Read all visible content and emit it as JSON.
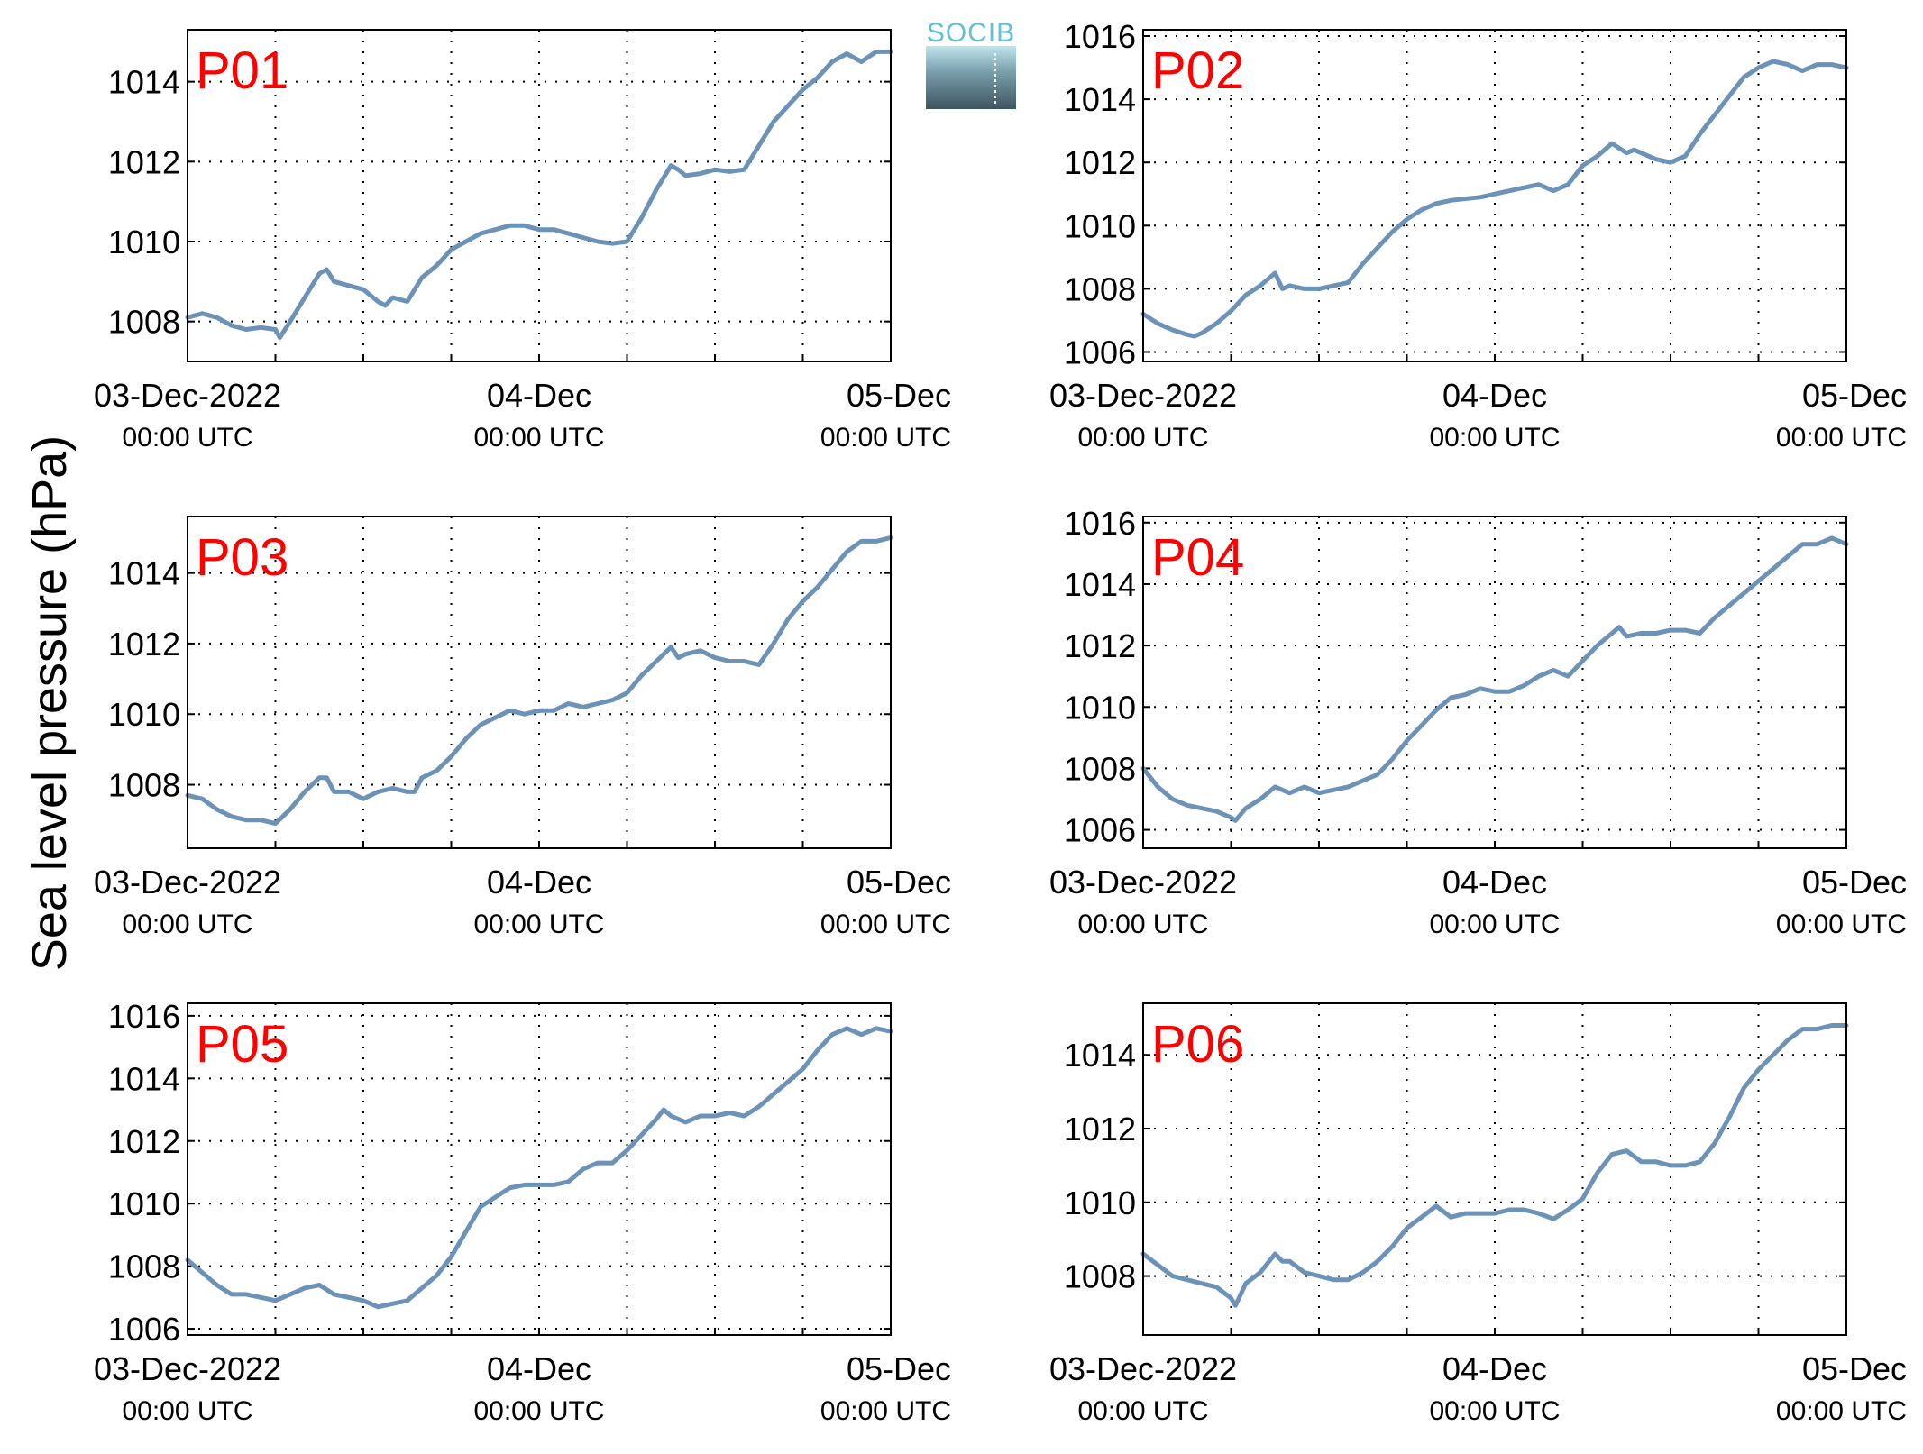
{
  "figure": {
    "ylabel": "Sea level pressure (hPa)",
    "logo_text": "SOCIB",
    "colors": {
      "line": "#6c93b7",
      "panel_label": "#ff0000",
      "grid": "#000000",
      "axes": "#000000"
    }
  },
  "chart_data": [
    {
      "type": "line",
      "title": "P01",
      "x_start": "03-Dec-2022 00:00 UTC",
      "x_end": "05-Dec-2022 00:00 UTC",
      "xlim_hours": [
        0,
        48
      ],
      "ylim": [
        1007.0,
        1015.3
      ],
      "yticks": [
        1008,
        1010,
        1012,
        1014
      ],
      "xticks": [
        {
          "hours": 0,
          "label": "03-Dec-2022",
          "sub": "00:00 UTC"
        },
        {
          "hours": 24,
          "label": "04-Dec",
          "sub": "00:00 UTC"
        },
        {
          "hours": 48,
          "label": "05-Dec",
          "sub": "00:00 UTC"
        }
      ],
      "grid": true,
      "series": [
        {
          "x": [
            0,
            1,
            2,
            3,
            4,
            5,
            6,
            6.3,
            7,
            8,
            9,
            9.5,
            10,
            11,
            12,
            13,
            13.5,
            14,
            15,
            16,
            17,
            18,
            19,
            20,
            21,
            22,
            23,
            24,
            25,
            26,
            27,
            28,
            29,
            30,
            31,
            32,
            33,
            33.5,
            34,
            35,
            36,
            37,
            38,
            39,
            40,
            41,
            42,
            43,
            44,
            45,
            46,
            47,
            48
          ],
          "y": [
            1008.1,
            1008.2,
            1008.1,
            1007.9,
            1007.8,
            1007.85,
            1007.8,
            1007.6,
            1008.0,
            1008.6,
            1009.2,
            1009.3,
            1009.0,
            1008.9,
            1008.8,
            1008.5,
            1008.4,
            1008.6,
            1008.5,
            1009.1,
            1009.4,
            1009.8,
            1010.0,
            1010.2,
            1010.3,
            1010.4,
            1010.4,
            1010.3,
            1010.3,
            1010.2,
            1010.1,
            1010.0,
            1009.95,
            1010.0,
            1010.6,
            1011.3,
            1011.9,
            1011.8,
            1011.65,
            1011.7,
            1011.8,
            1011.75,
            1011.8,
            1012.4,
            1013.0,
            1013.4,
            1013.8,
            1014.1,
            1014.5,
            1014.7,
            1014.5,
            1014.75,
            1014.75
          ]
        }
      ]
    },
    {
      "type": "line",
      "title": "P02",
      "x_start": "03-Dec-2022 00:00 UTC",
      "x_end": "05-Dec-2022 00:00 UTC",
      "xlim_hours": [
        0,
        48
      ],
      "ylim": [
        1005.7,
        1016.2
      ],
      "yticks": [
        1006,
        1008,
        1010,
        1012,
        1014,
        1016
      ],
      "xticks": [
        {
          "hours": 0,
          "label": "03-Dec-2022",
          "sub": "00:00 UTC"
        },
        {
          "hours": 24,
          "label": "04-Dec",
          "sub": "00:00 UTC"
        },
        {
          "hours": 48,
          "label": "05-Dec",
          "sub": "00:00 UTC"
        }
      ],
      "grid": true,
      "series": [
        {
          "x": [
            0,
            1,
            2,
            3,
            3.5,
            4,
            5,
            6,
            7,
            8,
            9,
            9.5,
            10,
            11,
            12,
            13,
            14,
            15,
            16,
            17,
            18,
            19,
            20,
            21,
            22,
            23,
            24,
            25,
            26,
            27,
            28,
            29,
            30,
            31,
            32,
            33,
            33.5,
            34,
            35,
            36,
            37,
            38,
            39,
            40,
            41,
            42,
            43,
            44,
            45,
            46,
            47,
            48
          ],
          "y": [
            1007.2,
            1006.9,
            1006.7,
            1006.55,
            1006.5,
            1006.6,
            1006.9,
            1007.3,
            1007.8,
            1008.1,
            1008.5,
            1008.0,
            1008.1,
            1008.0,
            1008.0,
            1008.1,
            1008.2,
            1008.8,
            1009.3,
            1009.8,
            1010.2,
            1010.5,
            1010.7,
            1010.8,
            1010.85,
            1010.9,
            1011.0,
            1011.1,
            1011.2,
            1011.3,
            1011.1,
            1011.3,
            1011.9,
            1012.2,
            1012.6,
            1012.3,
            1012.4,
            1012.3,
            1012.1,
            1012.0,
            1012.2,
            1012.9,
            1013.5,
            1014.1,
            1014.7,
            1015.0,
            1015.2,
            1015.1,
            1014.9,
            1015.1,
            1015.1,
            1015.0
          ]
        }
      ]
    },
    {
      "type": "line",
      "title": "P03",
      "x_start": "03-Dec-2022 00:00 UTC",
      "x_end": "05-Dec-2022 00:00 UTC",
      "xlim_hours": [
        0,
        48
      ],
      "ylim": [
        1006.2,
        1015.6
      ],
      "yticks": [
        1008,
        1010,
        1012,
        1014
      ],
      "xticks": [
        {
          "hours": 0,
          "label": "03-Dec-2022",
          "sub": "00:00 UTC"
        },
        {
          "hours": 24,
          "label": "04-Dec",
          "sub": "00:00 UTC"
        },
        {
          "hours": 48,
          "label": "05-Dec",
          "sub": "00:00 UTC"
        }
      ],
      "grid": true,
      "series": [
        {
          "x": [
            0,
            1,
            2,
            3,
            4,
            5,
            6,
            7,
            8,
            9,
            9.5,
            10,
            11,
            12,
            13,
            14,
            15,
            15.5,
            16,
            17,
            18,
            19,
            20,
            21,
            22,
            23,
            24,
            25,
            26,
            27,
            28,
            29,
            30,
            31,
            32,
            33,
            33.5,
            34,
            35,
            36,
            37,
            38,
            39,
            40,
            41,
            42,
            43,
            44,
            45,
            46,
            47,
            48
          ],
          "y": [
            1007.7,
            1007.6,
            1007.3,
            1007.1,
            1007.0,
            1007.0,
            1006.9,
            1007.3,
            1007.8,
            1008.2,
            1008.2,
            1007.8,
            1007.8,
            1007.6,
            1007.8,
            1007.9,
            1007.8,
            1007.8,
            1008.2,
            1008.4,
            1008.8,
            1009.3,
            1009.7,
            1009.9,
            1010.1,
            1010.0,
            1010.1,
            1010.1,
            1010.3,
            1010.2,
            1010.3,
            1010.4,
            1010.6,
            1011.1,
            1011.5,
            1011.9,
            1011.6,
            1011.7,
            1011.8,
            1011.6,
            1011.5,
            1011.5,
            1011.4,
            1012.0,
            1012.7,
            1013.2,
            1013.6,
            1014.1,
            1014.6,
            1014.9,
            1014.9,
            1015.0
          ]
        }
      ]
    },
    {
      "type": "line",
      "title": "P04",
      "x_start": "03-Dec-2022 00:00 UTC",
      "x_end": "05-Dec-2022 00:00 UTC",
      "xlim_hours": [
        0,
        48
      ],
      "ylim": [
        1005.4,
        1016.2
      ],
      "yticks": [
        1006,
        1008,
        1010,
        1012,
        1014,
        1016
      ],
      "xticks": [
        {
          "hours": 0,
          "label": "03-Dec-2022",
          "sub": "00:00 UTC"
        },
        {
          "hours": 24,
          "label": "04-Dec",
          "sub": "00:00 UTC"
        },
        {
          "hours": 48,
          "label": "05-Dec",
          "sub": "00:00 UTC"
        }
      ],
      "grid": true,
      "series": [
        {
          "x": [
            0,
            1,
            2,
            3,
            4,
            5,
            6,
            6.3,
            7,
            8,
            9,
            10,
            11,
            12,
            13,
            14,
            15,
            16,
            17,
            18,
            19,
            20,
            21,
            22,
            23,
            24,
            25,
            26,
            27,
            28,
            29,
            30,
            31,
            32,
            32.5,
            33,
            34,
            35,
            36,
            37,
            38,
            39,
            40,
            41,
            42,
            43,
            44,
            45,
            46,
            47,
            48
          ],
          "y": [
            1008.0,
            1007.4,
            1007.0,
            1006.8,
            1006.7,
            1006.6,
            1006.4,
            1006.3,
            1006.7,
            1007.0,
            1007.4,
            1007.2,
            1007.4,
            1007.2,
            1007.3,
            1007.4,
            1007.6,
            1007.8,
            1008.3,
            1008.9,
            1009.4,
            1009.9,
            1010.3,
            1010.4,
            1010.6,
            1010.5,
            1010.5,
            1010.7,
            1011.0,
            1011.2,
            1011.0,
            1011.5,
            1012.0,
            1012.4,
            1012.6,
            1012.3,
            1012.4,
            1012.4,
            1012.5,
            1012.5,
            1012.4,
            1012.9,
            1013.3,
            1013.7,
            1014.1,
            1014.5,
            1014.9,
            1015.3,
            1015.3,
            1015.5,
            1015.3
          ]
        }
      ]
    },
    {
      "type": "line",
      "title": "P05",
      "x_start": "03-Dec-2022 00:00 UTC",
      "x_end": "05-Dec-2022 00:00 UTC",
      "xlim_hours": [
        0,
        48
      ],
      "ylim": [
        1005.8,
        1016.4
      ],
      "yticks": [
        1006,
        1008,
        1010,
        1012,
        1014,
        1016
      ],
      "xticks": [
        {
          "hours": 0,
          "label": "03-Dec-2022",
          "sub": "00:00 UTC"
        },
        {
          "hours": 24,
          "label": "04-Dec",
          "sub": "00:00 UTC"
        },
        {
          "hours": 48,
          "label": "05-Dec",
          "sub": "00:00 UTC"
        }
      ],
      "grid": true,
      "series": [
        {
          "x": [
            0,
            1,
            2,
            3,
            4,
            5,
            6,
            7,
            8,
            9,
            10,
            11,
            12,
            13,
            14,
            15,
            16,
            17,
            18,
            19,
            20,
            21,
            22,
            23,
            24,
            25,
            26,
            27,
            28,
            29,
            30,
            31,
            32,
            32.5,
            33,
            34,
            35,
            36,
            37,
            38,
            39,
            40,
            41,
            42,
            43,
            44,
            45,
            46,
            47,
            48
          ],
          "y": [
            1008.2,
            1007.8,
            1007.4,
            1007.1,
            1007.1,
            1007.0,
            1006.9,
            1007.1,
            1007.3,
            1007.4,
            1007.1,
            1007.0,
            1006.9,
            1006.7,
            1006.8,
            1006.9,
            1007.3,
            1007.7,
            1008.3,
            1009.1,
            1009.9,
            1010.2,
            1010.5,
            1010.6,
            1010.6,
            1010.6,
            1010.7,
            1011.1,
            1011.3,
            1011.3,
            1011.7,
            1012.2,
            1012.7,
            1013.0,
            1012.8,
            1012.6,
            1012.8,
            1012.8,
            1012.9,
            1012.8,
            1013.1,
            1013.5,
            1013.9,
            1014.3,
            1014.9,
            1015.4,
            1015.6,
            1015.4,
            1015.6,
            1015.5
          ]
        }
      ]
    },
    {
      "type": "line",
      "title": "P06",
      "x_start": "03-Dec-2022 00:00 UTC",
      "x_end": "05-Dec-2022 00:00 UTC",
      "xlim_hours": [
        0,
        48
      ],
      "ylim": [
        1006.4,
        1015.4
      ],
      "yticks": [
        1008,
        1010,
        1012,
        1014
      ],
      "xticks": [
        {
          "hours": 0,
          "label": "03-Dec-2022",
          "sub": "00:00 UTC"
        },
        {
          "hours": 24,
          "label": "04-Dec",
          "sub": "00:00 UTC"
        },
        {
          "hours": 48,
          "label": "05-Dec",
          "sub": "00:00 UTC"
        }
      ],
      "grid": true,
      "series": [
        {
          "x": [
            0,
            1,
            2,
            3,
            4,
            5,
            6,
            6.3,
            7,
            8,
            9,
            9.5,
            10,
            11,
            12,
            13,
            14,
            15,
            16,
            17,
            18,
            19,
            20,
            21,
            22,
            23,
            24,
            25,
            26,
            27,
            28,
            29,
            30,
            31,
            32,
            33,
            34,
            35,
            36,
            37,
            38,
            39,
            40,
            41,
            42,
            43,
            44,
            45,
            46,
            47,
            48
          ],
          "y": [
            1008.6,
            1008.3,
            1008.0,
            1007.9,
            1007.8,
            1007.7,
            1007.4,
            1007.2,
            1007.8,
            1008.1,
            1008.6,
            1008.4,
            1008.4,
            1008.1,
            1008.0,
            1007.9,
            1007.9,
            1008.1,
            1008.4,
            1008.8,
            1009.3,
            1009.6,
            1009.9,
            1009.6,
            1009.7,
            1009.7,
            1009.7,
            1009.8,
            1009.8,
            1009.7,
            1009.55,
            1009.8,
            1010.1,
            1010.8,
            1011.3,
            1011.4,
            1011.1,
            1011.1,
            1011.0,
            1011.0,
            1011.1,
            1011.6,
            1012.3,
            1013.1,
            1013.6,
            1014.0,
            1014.4,
            1014.7,
            1014.7,
            1014.8,
            1014.8
          ]
        }
      ]
    }
  ]
}
